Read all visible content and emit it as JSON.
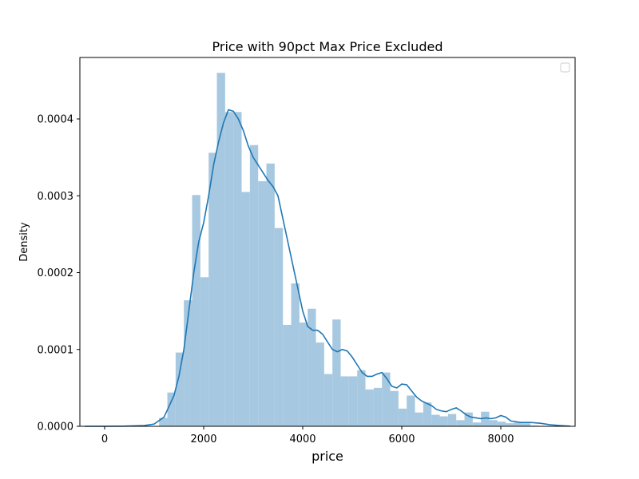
{
  "chart_data": {
    "type": "bar",
    "title": "Price with 90pct Max Price Excluded",
    "xlabel": "price",
    "ylabel": "Density",
    "xlim": [
      -500,
      9500
    ],
    "ylim": [
      0,
      0.00048
    ],
    "xticks": [
      0,
      2000,
      4000,
      6000,
      8000
    ],
    "xtick_labels": [
      "0",
      "2000",
      "4000",
      "6000",
      "8000"
    ],
    "yticks": [
      0,
      0.0001,
      0.0002,
      0.0003,
      0.0004
    ],
    "ytick_labels": [
      "0.0000",
      "0.0001",
      "0.0002",
      "0.0003",
      "0.0004"
    ],
    "legend": {
      "placement": "top-right",
      "entries": []
    },
    "grid": false,
    "colors": {
      "bars": "#a6c8e0",
      "kde": "#1f77b4"
    },
    "histogram": {
      "bin_width": 166.67,
      "bin_starts": [
        1100,
        1266.67,
        1433.33,
        1600,
        1766.67,
        1933.33,
        2100,
        2266.67,
        2433.33,
        2600,
        2766.67,
        2933.33,
        3100,
        3266.67,
        3433.33,
        3600,
        3766.67,
        3933.33,
        4100,
        4266.67,
        4433.33,
        4600,
        4766.67,
        4933.33,
        5100,
        5266.67,
        5433.33,
        5600,
        5766.67,
        5933.33,
        6100,
        6266.67,
        6433.33,
        6600,
        6766.67,
        6933.33,
        7100,
        7266.67,
        7433.33,
        7600,
        7766.67,
        7933.33,
        8100,
        8266.67,
        8433.33,
        8600
      ],
      "densities": [
        1.1e-05,
        4.4e-05,
        9.6e-05,
        0.000164,
        0.000301,
        0.000194,
        0.000356,
        0.00046,
        0.000409,
        0.000409,
        0.000305,
        0.000366,
        0.000319,
        0.000342,
        0.000258,
        0.000132,
        0.000186,
        0.000135,
        0.000153,
        0.000109,
        6.8e-05,
        0.000139,
        6.5e-05,
        6.5e-05,
        7.3e-05,
        4.8e-05,
        5e-05,
        7e-05,
        4.6e-05,
        2.3e-05,
        4e-05,
        1.8e-05,
        3.1e-05,
        1.5e-05,
        1.3e-05,
        1.6e-05,
        8e-06,
        1.8e-05,
        5e-06,
        1.9e-05,
        8e-06,
        6e-06,
        4e-06,
        5e-06,
        4e-06,
        1e-06
      ]
    },
    "kde": {
      "x": [
        -400,
        0,
        400,
        800,
        1000,
        1200,
        1400,
        1500,
        1600,
        1700,
        1800,
        1900,
        2000,
        2100,
        2200,
        2300,
        2400,
        2500,
        2600,
        2700,
        2800,
        2900,
        3000,
        3100,
        3200,
        3300,
        3400,
        3500,
        3600,
        3700,
        3800,
        3900,
        4000,
        4100,
        4200,
        4300,
        4400,
        4500,
        4600,
        4700,
        4800,
        4900,
        5000,
        5100,
        5200,
        5300,
        5400,
        5500,
        5600,
        5700,
        5800,
        5900,
        6000,
        6100,
        6200,
        6300,
        6400,
        6500,
        6600,
        6700,
        6800,
        6900,
        7000,
        7100,
        7200,
        7300,
        7400,
        7500,
        7600,
        7700,
        7800,
        7900,
        8000,
        8100,
        8200,
        8400,
        8600,
        8800,
        9000,
        9200,
        9400
      ],
      "y": [
        0,
        0,
        2e-07,
        1e-06,
        3e-06,
        1.2e-05,
        4e-05,
        6.5e-05,
        0.0001,
        0.00015,
        0.0002,
        0.00024,
        0.000265,
        0.0003,
        0.00034,
        0.00037,
        0.000395,
        0.000412,
        0.00041,
        0.0004,
        0.000385,
        0.000365,
        0.00035,
        0.00034,
        0.00033,
        0.00032,
        0.000312,
        0.0003,
        0.00027,
        0.00024,
        0.00021,
        0.00018,
        0.00015,
        0.00013,
        0.000125,
        0.000125,
        0.00012,
        0.00011,
        0.0001,
        9.7e-05,
        0.0001,
        9.8e-05,
        9e-05,
        8e-05,
        7e-05,
        6.5e-05,
        6.5e-05,
        6.8e-05,
        7e-05,
        6.2e-05,
        5.2e-05,
        5e-05,
        5.5e-05,
        5.4e-05,
        4.6e-05,
        3.8e-05,
        3.3e-05,
        3e-05,
        2.7e-05,
        2.2e-05,
        2e-05,
        1.9e-05,
        2.2e-05,
        2.4e-05,
        2e-05,
        1.5e-05,
        1.2e-05,
        1.1e-05,
        1e-05,
        1.1e-05,
        1e-05,
        1.1e-05,
        1.4e-05,
        1.2e-05,
        7e-06,
        5e-06,
        5e-06,
        4e-06,
        2e-06,
        1e-06,
        2e-07
      ]
    }
  }
}
